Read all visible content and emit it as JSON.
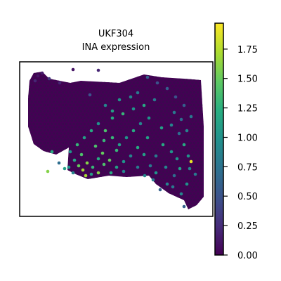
{
  "chart_data": {
    "type": "heatmap",
    "title": "UKF304",
    "subtitle": "INA expression",
    "xlabel": "",
    "ylabel": "",
    "colorbar": {
      "range": [
        0,
        1.97
      ],
      "ticks": [
        0.0,
        0.25,
        0.5,
        0.75,
        1.0,
        1.25,
        1.5,
        1.75
      ],
      "tick_labels": [
        "0.00",
        "0.25",
        "0.50",
        "0.75",
        "1.00",
        "1.25",
        "1.50",
        "1.75"
      ],
      "colormap": "viridis",
      "position": "right"
    },
    "grid": false,
    "background_value": 0.0,
    "points": [
      [
        50,
        115,
        0.2
      ],
      [
        54,
        108,
        0.1
      ],
      [
        60,
        104,
        0.15
      ],
      [
        70,
        112,
        0.3
      ],
      [
        85,
        118,
        0.2
      ],
      [
        104,
        99,
        0.1
      ],
      [
        140,
        100,
        0.2
      ],
      [
        128,
        135,
        0.5
      ],
      [
        150,
        150,
        0.9
      ],
      [
        160,
        158,
        1.1
      ],
      [
        175,
        162,
        1.3
      ],
      [
        190,
        155,
        1.0
      ],
      [
        205,
        150,
        1.2
      ],
      [
        220,
        142,
        0.8
      ],
      [
        212,
        168,
        1.0
      ],
      [
        230,
        182,
        1.1
      ],
      [
        244,
        178,
        0.9
      ],
      [
        255,
        190,
        0.7
      ],
      [
        262,
        206,
        1.2
      ],
      [
        268,
        222,
        1.0
      ],
      [
        272,
        230,
        1.9
      ],
      [
        278,
        248,
        0.8
      ],
      [
        266,
        262,
        1.0
      ],
      [
        258,
        276,
        0.9
      ],
      [
        262,
        294,
        0.6
      ],
      [
        248,
        250,
        0.7
      ],
      [
        236,
        238,
        0.9
      ],
      [
        222,
        246,
        1.0
      ],
      [
        214,
        236,
        0.8
      ],
      [
        205,
        220,
        1.1
      ],
      [
        196,
        210,
        1.2
      ],
      [
        186,
        222,
        0.9
      ],
      [
        176,
        230,
        1.0
      ],
      [
        166,
        238,
        1.1
      ],
      [
        156,
        228,
        1.5
      ],
      [
        148,
        234,
        1.4
      ],
      [
        140,
        226,
        1.2
      ],
      [
        132,
        238,
        1.3
      ],
      [
        124,
        232,
        1.6
      ],
      [
        118,
        242,
        1.7
      ],
      [
        112,
        236,
        1.5
      ],
      [
        106,
        228,
        1.2
      ],
      [
        100,
        216,
        1.0
      ],
      [
        110,
        206,
        1.3
      ],
      [
        120,
        196,
        1.1
      ],
      [
        130,
        186,
        1.2
      ],
      [
        140,
        176,
        1.0
      ],
      [
        150,
        186,
        1.4
      ],
      [
        160,
        196,
        1.3
      ],
      [
        170,
        206,
        1.1
      ],
      [
        180,
        196,
        1.0
      ],
      [
        190,
        186,
        1.2
      ],
      [
        200,
        176,
        0.9
      ],
      [
        210,
        196,
        1.1
      ],
      [
        98,
        238,
        1.0
      ],
      [
        104,
        246,
        0.9
      ],
      [
        92,
        240,
        1.1
      ],
      [
        84,
        232,
        0.7
      ],
      [
        74,
        216,
        1.2
      ],
      [
        68,
        244,
        1.6
      ],
      [
        122,
        250,
        1.7
      ],
      [
        146,
        218,
        1.5
      ],
      [
        166,
        214,
        1.3
      ],
      [
        136,
        208,
        1.4
      ],
      [
        244,
        216,
        1.0
      ],
      [
        232,
        206,
        1.2
      ],
      [
        222,
        222,
        0.8
      ],
      [
        238,
        262,
        0.9
      ],
      [
        228,
        270,
        0.6
      ],
      [
        246,
        266,
        0.8
      ],
      [
        256,
        240,
        1.1
      ],
      [
        270,
        240,
        0.9
      ],
      [
        252,
        226,
        1.0
      ],
      [
        186,
        138,
        0.9
      ],
      [
        196,
        132,
        0.8
      ],
      [
        170,
        142,
        1.0
      ],
      [
        210,
        110,
        0.6
      ],
      [
        224,
        118,
        0.5
      ],
      [
        238,
        126,
        0.6
      ],
      [
        250,
        138,
        0.5
      ],
      [
        262,
        150,
        0.6
      ],
      [
        272,
        166,
        0.8
      ],
      [
        266,
        186,
        0.9
      ],
      [
        258,
        170,
        0.7
      ],
      [
        248,
        160,
        0.8
      ],
      [
        160,
        168,
        1.2
      ],
      [
        148,
        200,
        1.3
      ],
      [
        116,
        220,
        1.4
      ],
      [
        130,
        248,
        1.1
      ],
      [
        140,
        246,
        1.6
      ],
      [
        158,
        246,
        1.2
      ],
      [
        176,
        244,
        0.9
      ],
      [
        196,
        238,
        0.8
      ],
      [
        206,
        250,
        0.9
      ],
      [
        218,
        256,
        0.8
      ]
    ]
  }
}
